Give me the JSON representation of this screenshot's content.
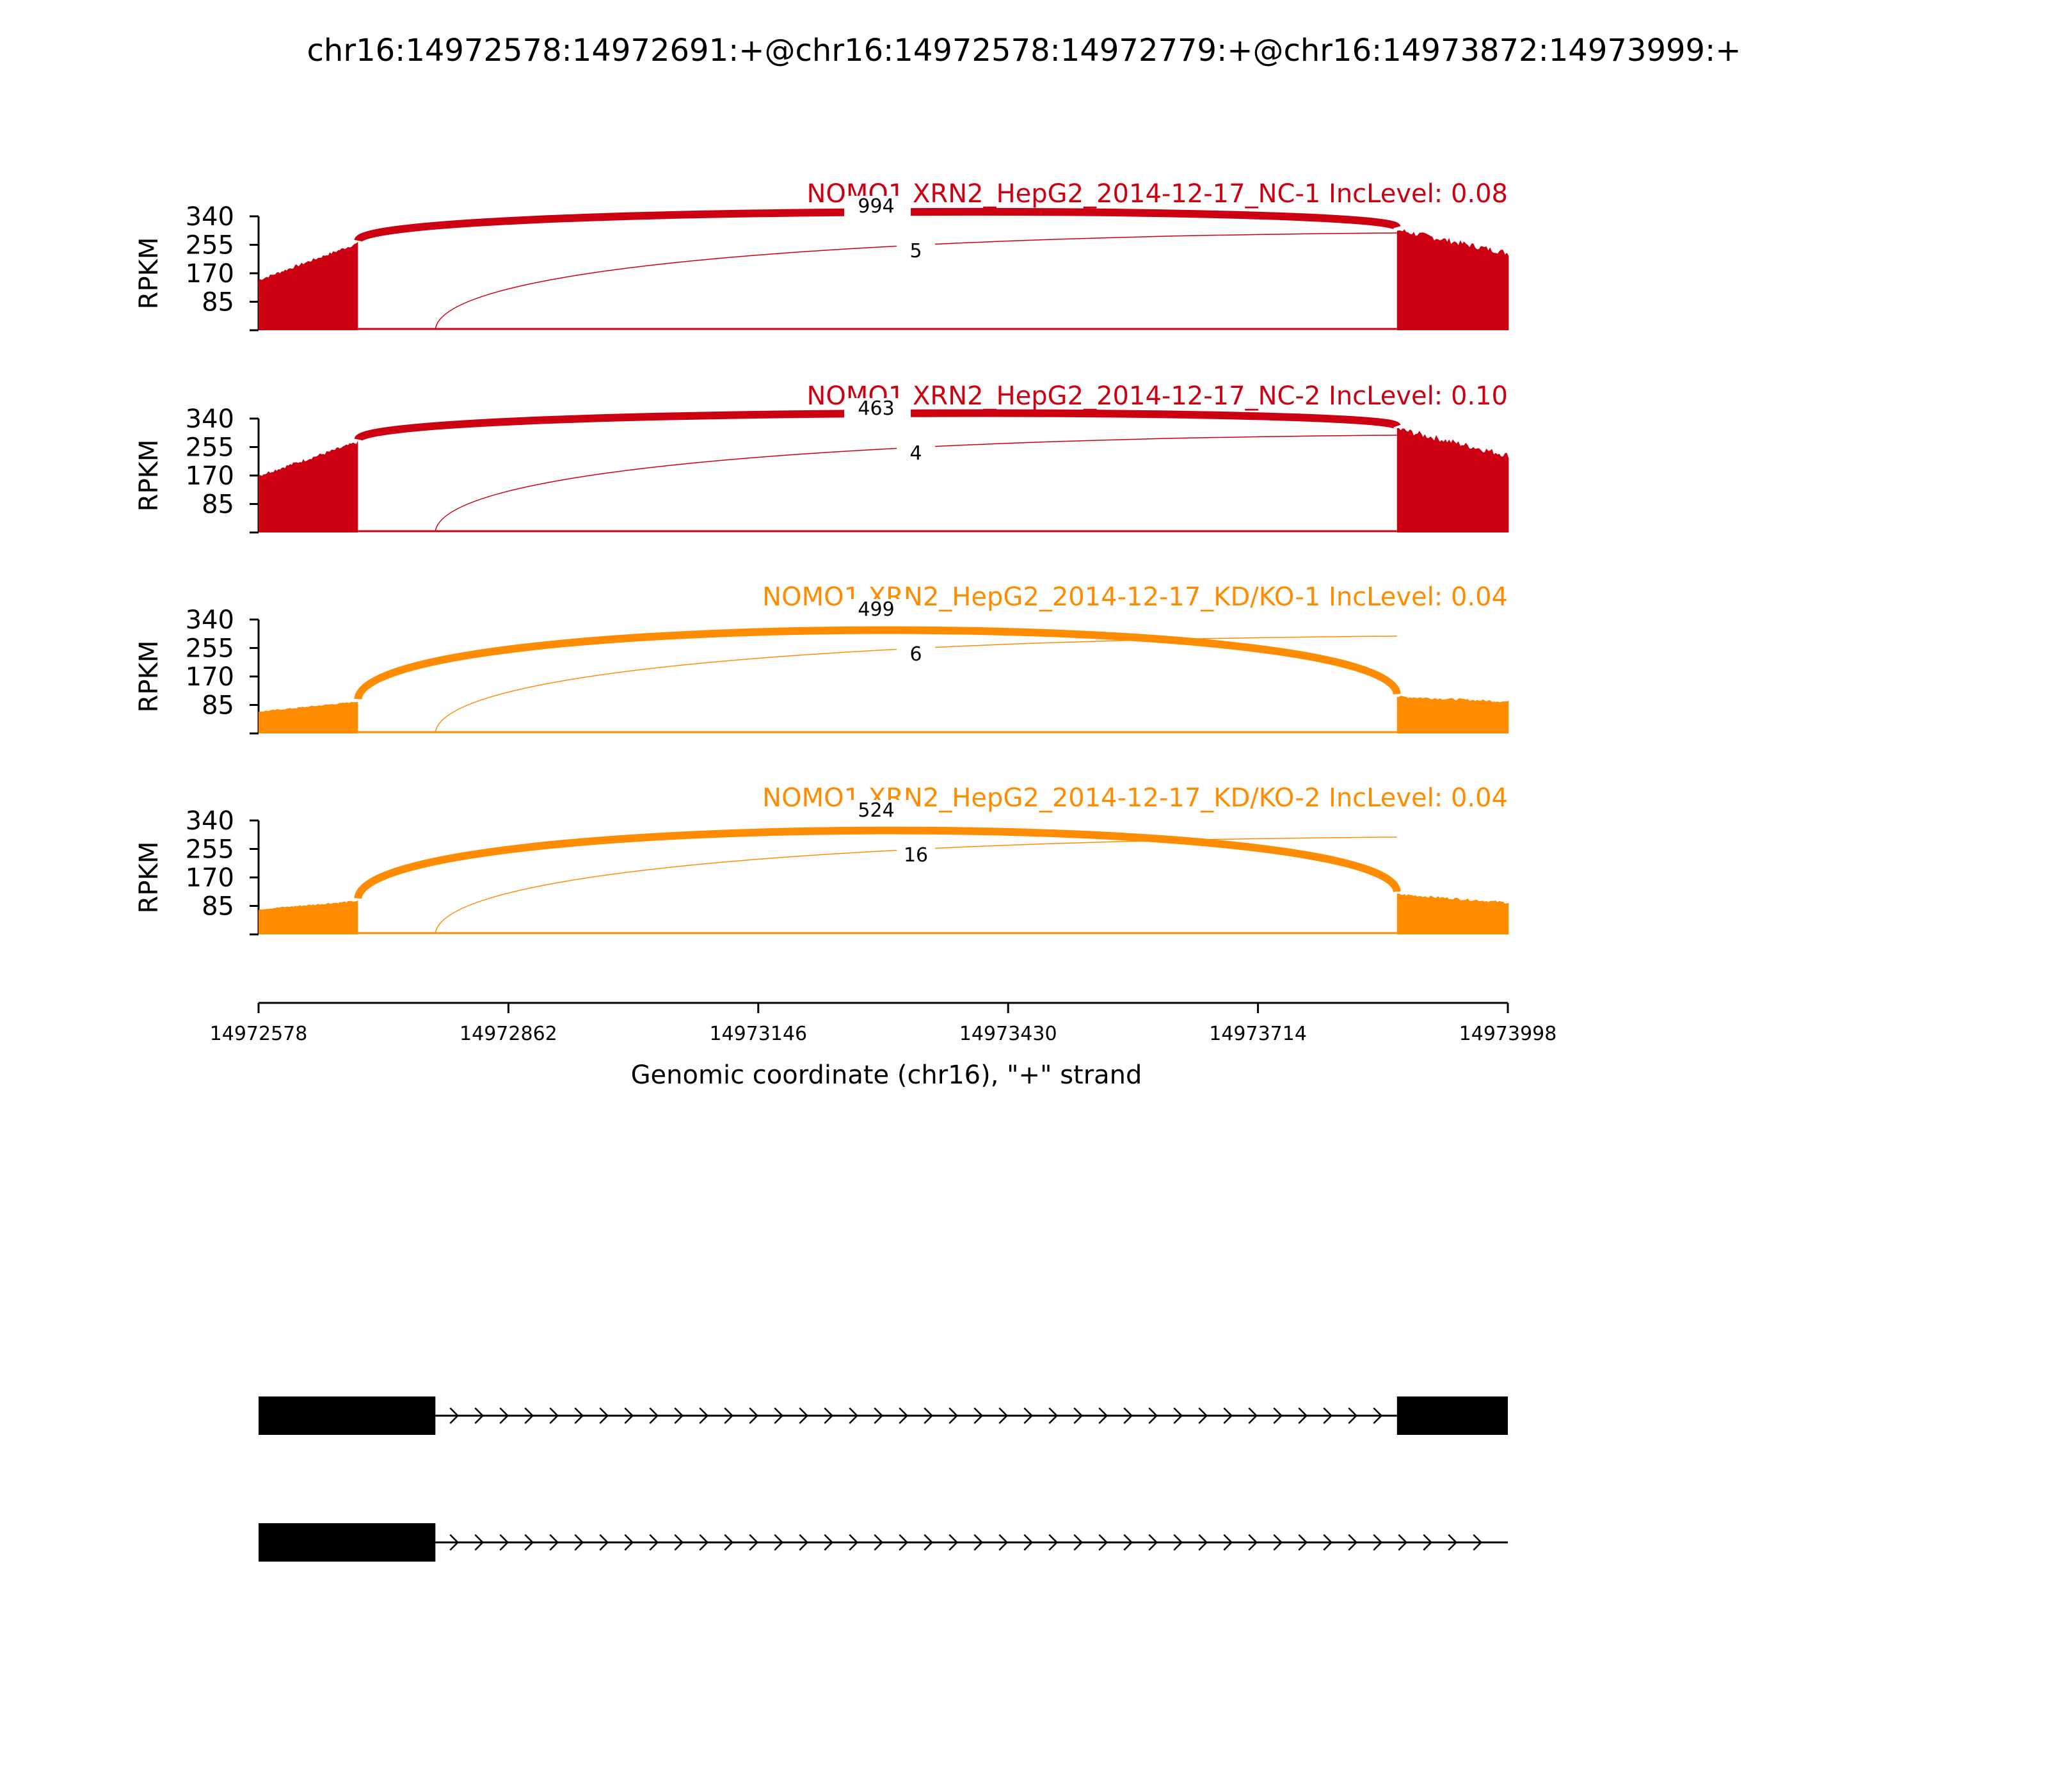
{
  "chart_data": {
    "type": "sashimi",
    "title": "chr16:14972578:14972691:+@chr16:14972578:14972779:+@chr16:14973872:14973999:+",
    "xlabel": "Genomic coordinate (chr16), \"+\" strand",
    "ylabel": "RPKM",
    "xlim": [
      14972578,
      14973998
    ],
    "x_ticks": [
      "14972578",
      "14972862",
      "14973146",
      "14973430",
      "14973714",
      "14973998"
    ],
    "ylim": [
      0,
      340
    ],
    "y_ticks": [
      "85",
      "170",
      "255",
      "340"
    ],
    "colors": {
      "nc": "#cc0011",
      "kd": "#ff8c00"
    },
    "exons": {
      "upstream_a": [
        14972578,
        14972691
      ],
      "upstream_b": [
        14972578,
        14972779
      ],
      "downstream": [
        14973872,
        14973999
      ]
    },
    "series": [
      {
        "name": "NOMO1 XRN2_HepG2_2014-12-17_NC-1 IncLevel: 0.08",
        "color": "#cc0011",
        "coverage_exon1": [
          150,
          260
        ],
        "coverage_exon3": [
          300,
          230
        ],
        "junctions": [
          {
            "start": 14972691,
            "end": 14973872,
            "count": "994"
          },
          {
            "start": 14972779,
            "end": 14973872,
            "count": "5"
          }
        ]
      },
      {
        "name": "NOMO1 XRN2_HepG2_2014-12-17_NC-2 IncLevel: 0.10",
        "color": "#cc0011",
        "coverage_exon1": [
          170,
          270
        ],
        "coverage_exon3": [
          310,
          230
        ],
        "junctions": [
          {
            "start": 14972691,
            "end": 14973872,
            "count": "463"
          },
          {
            "start": 14972779,
            "end": 14973872,
            "count": "4"
          }
        ]
      },
      {
        "name": "NOMO1 XRN2_HepG2_2014-12-17_KD/KO-1 IncLevel: 0.04",
        "color": "#ff8c00",
        "coverage_exon1": [
          65,
          95
        ],
        "coverage_exon3": [
          110,
          95
        ],
        "junctions": [
          {
            "start": 14972691,
            "end": 14973872,
            "count": "499"
          },
          {
            "start": 14972779,
            "end": 14973872,
            "count": "6"
          }
        ]
      },
      {
        "name": "NOMO1 XRN2_HepG2_2014-12-17_KD/KO-2 IncLevel: 0.04",
        "color": "#ff8c00",
        "coverage_exon1": [
          75,
          100
        ],
        "coverage_exon3": [
          120,
          95
        ],
        "junctions": [
          {
            "start": 14972691,
            "end": 14973872,
            "count": "524"
          },
          {
            "start": 14972779,
            "end": 14973872,
            "count": "16"
          }
        ]
      }
    ],
    "isoforms": [
      {
        "exons": [
          [
            14972578,
            14972779
          ],
          [
            14973872,
            14973999
          ]
        ]
      },
      {
        "exons": [
          [
            14972578,
            14972779
          ]
        ]
      }
    ]
  }
}
